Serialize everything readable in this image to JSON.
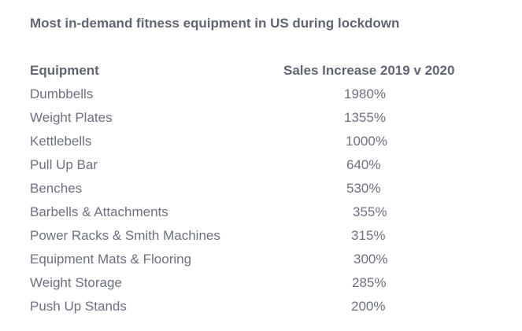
{
  "chart_data": {
    "type": "table",
    "title": "Most in-demand fitness equipment in US during lockdown",
    "columns": [
      "Equipment",
      "Sales Increase 2019 v 2020"
    ],
    "rows": [
      {
        "name": "Dumbbells",
        "value": "1980%"
      },
      {
        "name": "Weight Plates",
        "value": "1355%"
      },
      {
        "name": "Kettlebells",
        "value": "1000%"
      },
      {
        "name": "Pull Up Bar",
        "value": "640%"
      },
      {
        "name": "Benches",
        "value": "530%"
      },
      {
        "name": "Barbells & Attachments",
        "value": "355%"
      },
      {
        "name": "Power Racks & Smith Machines",
        "value": "315%"
      },
      {
        "name": "Equipment Mats & Flooring",
        "value": "300%"
      },
      {
        "name": "Weight Storage",
        "value": "285%"
      },
      {
        "name": "Push Up Stands",
        "value": "200%"
      }
    ]
  }
}
